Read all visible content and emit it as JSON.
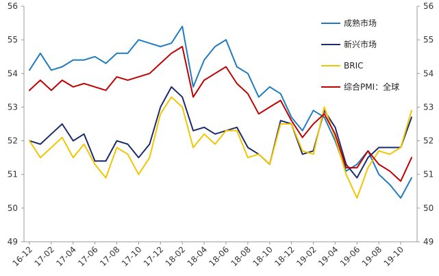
{
  "chart_data": {
    "type": "line",
    "x": [
      "16-12",
      "17-01",
      "17-02",
      "17-03",
      "17-04",
      "17-05",
      "17-06",
      "17-07",
      "17-08",
      "17-09",
      "17-10",
      "17-11",
      "17-12",
      "18-01",
      "18-02",
      "18-03",
      "18-04",
      "18-05",
      "18-06",
      "18-07",
      "18-08",
      "18-09",
      "18-10",
      "18-11",
      "18-12",
      "19-01",
      "19-02",
      "19-03",
      "19-04",
      "19-05",
      "19-06",
      "19-07",
      "19-08",
      "19-09",
      "19-10",
      "19-11"
    ],
    "xtick_labels": [
      "16-12",
      "17-02",
      "17-04",
      "17-06",
      "17-08",
      "17-10",
      "17-12",
      "18-02",
      "18-04",
      "18-06",
      "18-08",
      "18-10",
      "18-12",
      "19-02",
      "19-04",
      "19-06",
      "19-08",
      "19-10"
    ],
    "ylim": [
      49,
      56
    ],
    "yticks": [
      "49",
      "50",
      "51",
      "52",
      "53",
      "54",
      "55",
      "56"
    ],
    "grid": false,
    "legend_position": "top-right",
    "series": [
      {
        "name": "成熟市场",
        "color": "#1f7bbf",
        "values": [
          54.1,
          54.6,
          54.1,
          54.2,
          54.4,
          54.4,
          54.5,
          54.3,
          54.6,
          54.6,
          55.0,
          54.9,
          54.8,
          54.9,
          55.4,
          53.6,
          54.4,
          54.8,
          55.0,
          54.2,
          54.0,
          53.3,
          53.6,
          53.4,
          52.7,
          52.3,
          52.9,
          52.7,
          52.0,
          51.1,
          51.3,
          51.7,
          51.0,
          50.7,
          50.3,
          50.9
        ]
      },
      {
        "name": "新兴市场",
        "color": "#1b2a6b",
        "values": [
          52.0,
          51.9,
          52.2,
          52.5,
          52.0,
          52.2,
          51.4,
          51.4,
          52.0,
          51.9,
          51.5,
          51.9,
          53.0,
          53.6,
          53.3,
          52.3,
          52.4,
          52.2,
          52.3,
          52.4,
          51.8,
          51.6,
          51.3,
          52.6,
          52.5,
          51.6,
          51.7,
          52.9,
          52.4,
          51.3,
          50.9,
          51.5,
          51.8,
          51.8,
          51.8,
          52.7
        ]
      },
      {
        "name": "BRIC",
        "color": "#f2c500",
        "values": [
          52.0,
          51.5,
          51.8,
          52.1,
          51.5,
          51.9,
          51.3,
          50.9,
          51.8,
          51.6,
          51.0,
          51.5,
          52.8,
          53.3,
          53.0,
          51.8,
          52.2,
          51.9,
          52.3,
          52.3,
          51.5,
          51.6,
          51.3,
          52.5,
          52.5,
          51.7,
          51.6,
          53.0,
          52.1,
          51.0,
          50.3,
          51.2,
          51.7,
          51.6,
          51.8,
          52.9
        ]
      },
      {
        "name": "综合PMI：全球",
        "color": "#c00000",
        "values": [
          53.5,
          53.8,
          53.5,
          53.8,
          53.6,
          53.7,
          53.6,
          53.5,
          53.9,
          53.8,
          53.9,
          54.0,
          54.3,
          54.6,
          54.8,
          53.3,
          53.8,
          54.0,
          54.2,
          53.7,
          53.4,
          52.8,
          53.0,
          53.2,
          52.6,
          52.1,
          52.5,
          52.8,
          52.2,
          51.2,
          51.2,
          51.7,
          51.3,
          51.1,
          50.8,
          51.5
        ]
      }
    ]
  }
}
